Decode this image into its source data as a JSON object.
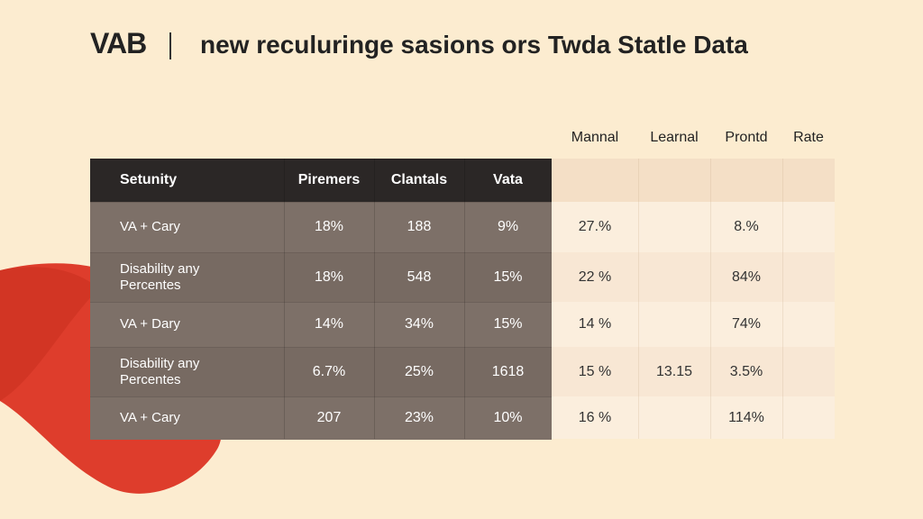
{
  "header": {
    "logo": "VAB",
    "title": "new reculuringe sasions ors Twda Statle Data"
  },
  "table": {
    "columns": [
      "Setunity",
      "Piremers",
      "Clantals",
      "Vata",
      "Mannal",
      "Learnal",
      "Prontd",
      "Rate"
    ],
    "rows": [
      [
        "VA + Cary",
        "18%",
        "188",
        "9%",
        "27.%",
        null,
        "8.%",
        null
      ],
      [
        "Disability any\nPercentes",
        "18%",
        "548",
        "15%",
        "22 %",
        null,
        "84%",
        null
      ],
      [
        "VA + Dary",
        "14%",
        "34%",
        "15%",
        "14 %",
        null,
        "74%",
        null
      ],
      [
        "Disability any\nPercentes",
        "6.7%",
        "25%",
        "1618",
        "15 %",
        "13.15",
        "3.5%",
        null
      ],
      [
        "VA + Cary",
        "207",
        "23%",
        "10%",
        "16 %",
        null,
        "114%",
        null
      ]
    ]
  }
}
